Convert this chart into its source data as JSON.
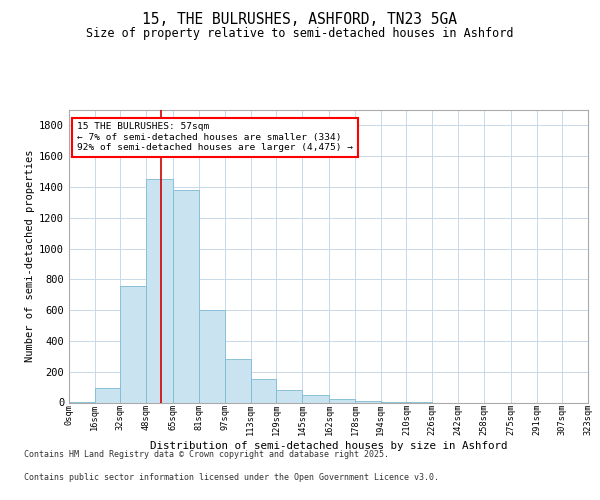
{
  "title_line1": "15, THE BULRUSHES, ASHFORD, TN23 5GA",
  "title_line2": "Size of property relative to semi-detached houses in Ashford",
  "xlabel": "Distribution of semi-detached houses by size in Ashford",
  "ylabel": "Number of semi-detached properties",
  "annotation_title": "15 THE BULRUSHES: 57sqm",
  "annotation_line2": "← 7% of semi-detached houses are smaller (334)",
  "annotation_line3": "92% of semi-detached houses are larger (4,475) →",
  "footer_line1": "Contains HM Land Registry data © Crown copyright and database right 2025.",
  "footer_line2": "Contains public sector information licensed under the Open Government Licence v3.0.",
  "bar_color": "#c9e4f0",
  "bar_edge_color": "#7bbbd4",
  "vline_color": "#cc0000",
  "background_color": "#ffffff",
  "grid_color": "#c8d8e8",
  "bin_edges": [
    0,
    16,
    32,
    48,
    65,
    81,
    97,
    113,
    129,
    145,
    162,
    178,
    194,
    210,
    226,
    242,
    258,
    275,
    291,
    307,
    323
  ],
  "bin_labels": [
    "0sqm",
    "16sqm",
    "32sqm",
    "48sqm",
    "65sqm",
    "81sqm",
    "97sqm",
    "113sqm",
    "129sqm",
    "145sqm",
    "162sqm",
    "178sqm",
    "194sqm",
    "210sqm",
    "226sqm",
    "242sqm",
    "258sqm",
    "275sqm",
    "291sqm",
    "307sqm",
    "323sqm"
  ],
  "bar_heights": [
    3,
    95,
    760,
    1450,
    1380,
    600,
    280,
    150,
    80,
    50,
    25,
    8,
    3,
    1,
    0,
    0,
    0,
    0,
    0,
    0
  ],
  "vline_x": 57,
  "ylim": [
    0,
    1900
  ],
  "yticks": [
    0,
    200,
    400,
    600,
    800,
    1000,
    1200,
    1400,
    1600,
    1800
  ]
}
